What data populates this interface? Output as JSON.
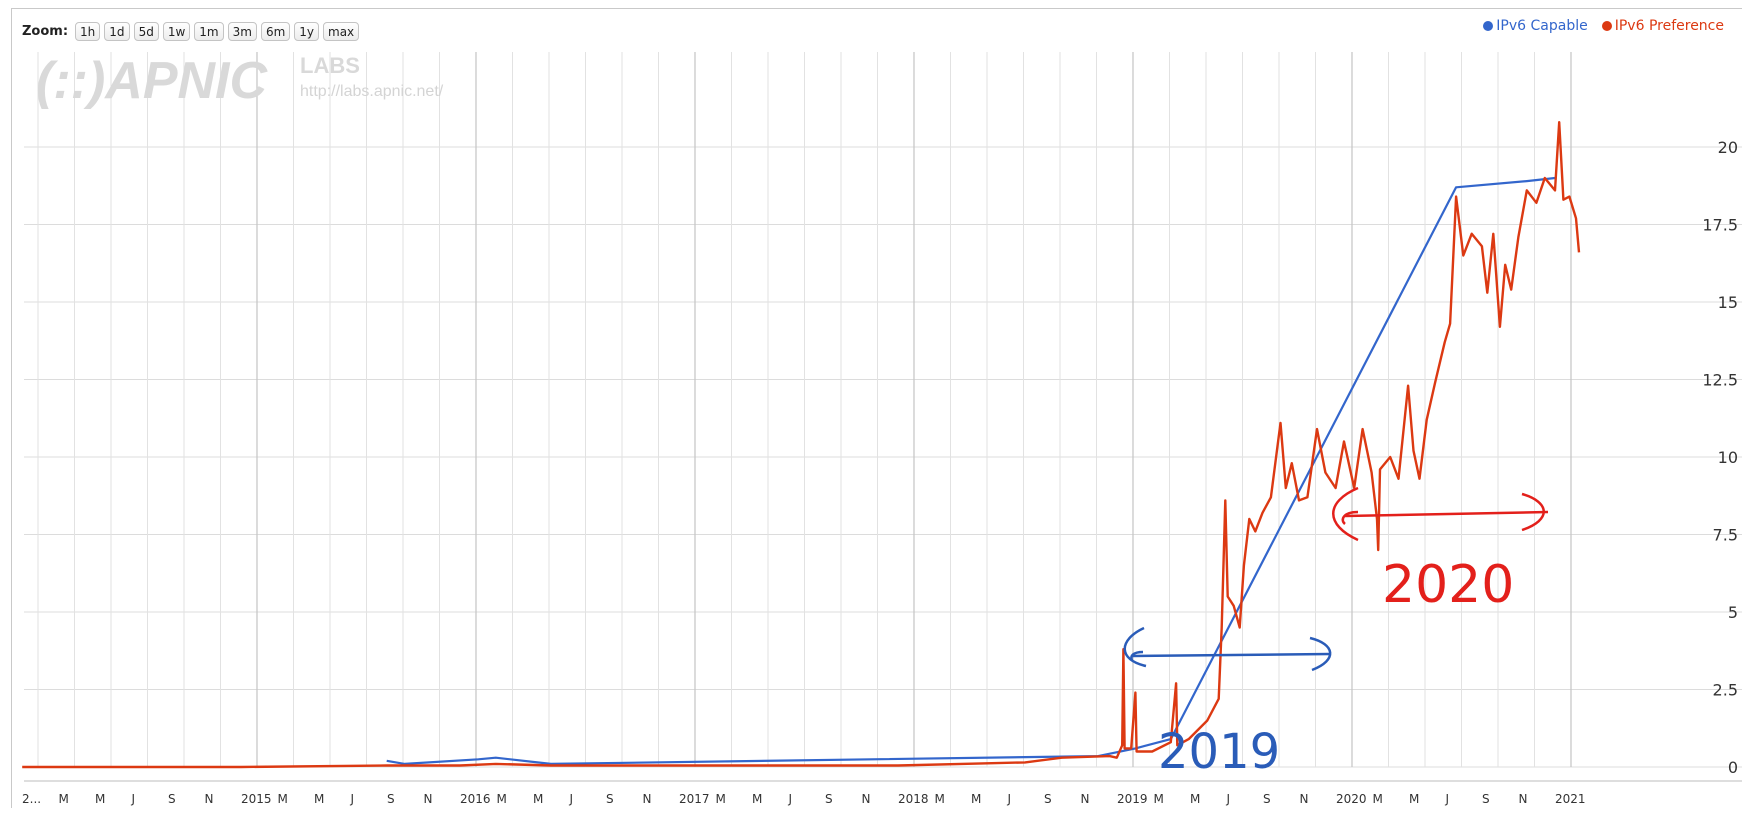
{
  "zoom": {
    "label": "Zoom:",
    "buttons": [
      "1h",
      "1d",
      "5d",
      "1w",
      "1m",
      "3m",
      "6m",
      "1y",
      "max"
    ]
  },
  "legend": [
    {
      "name": "IPv6 Capable",
      "color": "#3366cc"
    },
    {
      "name": "IPv6 Preference",
      "color": "#dc3912"
    }
  ],
  "watermark": {
    "logo": "(::)APNIC",
    "labs": "LABS",
    "url": "http://labs.apnic.net/"
  },
  "annotations": {
    "label_2019": "2019",
    "label_2020": "2020",
    "color_2019": "#2a5cb8",
    "color_2020": "#e3201b"
  },
  "chart_data": {
    "type": "line",
    "y_ticks": [
      "0",
      "2.5",
      "5",
      "7.5",
      "10",
      "12.5",
      "15",
      "17.5",
      "20"
    ],
    "ylim": [
      0,
      21
    ],
    "x_tick_labels": [
      "2...",
      "M",
      "M",
      "J",
      "S",
      "N",
      "2015",
      "M",
      "M",
      "J",
      "S",
      "N",
      "2016",
      "M",
      "M",
      "J",
      "S",
      "N",
      "2017",
      "M",
      "M",
      "J",
      "S",
      "N",
      "2018",
      "M",
      "M",
      "J",
      "S",
      "N",
      "2019",
      "M",
      "M",
      "J",
      "S",
      "N",
      "2020",
      "M",
      "M",
      "J",
      "S",
      "N",
      "2021"
    ],
    "grid": true,
    "legend_position": "top-right",
    "series": [
      {
        "name": "IPv6 Preference",
        "color": "#dc3912",
        "points": [
          [
            "2014-01-01",
            0.0
          ],
          [
            "2015-01-01",
            0.0
          ],
          [
            "2015-09-01",
            0.05
          ],
          [
            "2016-01-01",
            0.05
          ],
          [
            "2016-03-01",
            0.1
          ],
          [
            "2016-06-01",
            0.05
          ],
          [
            "2017-01-01",
            0.05
          ],
          [
            "2017-06-01",
            0.05
          ],
          [
            "2018-01-01",
            0.05
          ],
          [
            "2018-08-01",
            0.15
          ],
          [
            "2018-10-01",
            0.3
          ],
          [
            "2018-12-20",
            0.35
          ],
          [
            "2019-01-01",
            0.3
          ],
          [
            "2019-01-10",
            0.7
          ],
          [
            "2019-01-12",
            3.8
          ],
          [
            "2019-01-14",
            0.6
          ],
          [
            "2019-01-25",
            0.6
          ],
          [
            "2019-02-01",
            2.4
          ],
          [
            "2019-02-03",
            0.5
          ],
          [
            "2019-03-01",
            0.5
          ],
          [
            "2019-04-01",
            0.8
          ],
          [
            "2019-04-10",
            2.7
          ],
          [
            "2019-04-12",
            0.7
          ],
          [
            "2019-05-01",
            0.9
          ],
          [
            "2019-06-01",
            1.5
          ],
          [
            "2019-06-20",
            2.2
          ],
          [
            "2019-06-25",
            4.5
          ],
          [
            "2019-07-01",
            8.6
          ],
          [
            "2019-07-05",
            5.5
          ],
          [
            "2019-07-15",
            5.2
          ],
          [
            "2019-07-25",
            4.5
          ],
          [
            "2019-08-01",
            6.5
          ],
          [
            "2019-08-10",
            8.0
          ],
          [
            "2019-08-20",
            7.6
          ],
          [
            "2019-09-01",
            8.2
          ],
          [
            "2019-09-15",
            8.7
          ],
          [
            "2019-10-01",
            11.1
          ],
          [
            "2019-10-10",
            9.0
          ],
          [
            "2019-10-20",
            9.8
          ],
          [
            "2019-11-01",
            8.6
          ],
          [
            "2019-11-15",
            8.7
          ],
          [
            "2019-12-01",
            10.9
          ],
          [
            "2019-12-15",
            9.5
          ],
          [
            "2020-01-01",
            9.0
          ],
          [
            "2020-01-15",
            10.5
          ],
          [
            "2020-02-01",
            9.0
          ],
          [
            "2020-02-15",
            10.9
          ],
          [
            "2020-03-01",
            9.5
          ],
          [
            "2020-03-10",
            8.0
          ],
          [
            "2020-03-12",
            7.0
          ],
          [
            "2020-03-15",
            9.6
          ],
          [
            "2020-04-01",
            10.0
          ],
          [
            "2020-04-15",
            9.3
          ],
          [
            "2020-05-01",
            12.3
          ],
          [
            "2020-05-10",
            10.2
          ],
          [
            "2020-05-20",
            9.3
          ],
          [
            "2020-06-01",
            11.2
          ],
          [
            "2020-06-15",
            12.4
          ],
          [
            "2020-07-01",
            13.7
          ],
          [
            "2020-07-10",
            14.3
          ],
          [
            "2020-07-20",
            18.4
          ],
          [
            "2020-08-01",
            16.5
          ],
          [
            "2020-08-15",
            17.2
          ],
          [
            "2020-09-01",
            16.8
          ],
          [
            "2020-09-10",
            15.3
          ],
          [
            "2020-09-20",
            17.2
          ],
          [
            "2020-10-01",
            14.2
          ],
          [
            "2020-10-10",
            16.2
          ],
          [
            "2020-10-20",
            15.4
          ],
          [
            "2020-11-01",
            17.1
          ],
          [
            "2020-11-15",
            18.6
          ],
          [
            "2020-12-01",
            18.2
          ],
          [
            "2020-12-15",
            19.0
          ],
          [
            "2021-01-01",
            18.6
          ],
          [
            "2021-01-08",
            20.8
          ],
          [
            "2021-01-15",
            18.3
          ],
          [
            "2021-01-25",
            18.4
          ],
          [
            "2021-02-05",
            17.7
          ],
          [
            "2021-02-10",
            16.6
          ]
        ]
      },
      {
        "name": "IPv6 Capable",
        "color": "#3366cc",
        "points": [
          [
            "2015-09-01",
            0.2
          ],
          [
            "2015-10-01",
            0.1
          ],
          [
            "2016-02-01",
            0.25
          ],
          [
            "2016-03-01",
            0.3
          ],
          [
            "2016-06-01",
            0.1
          ],
          [
            "2018-12-01",
            0.35
          ],
          [
            "2019-02-01",
            0.6
          ],
          [
            "2019-04-01",
            0.9
          ],
          [
            "2020-07-20",
            18.7
          ],
          [
            "2020-11-15",
            18.9
          ],
          [
            "2021-01-01",
            19.0
          ]
        ]
      }
    ]
  }
}
